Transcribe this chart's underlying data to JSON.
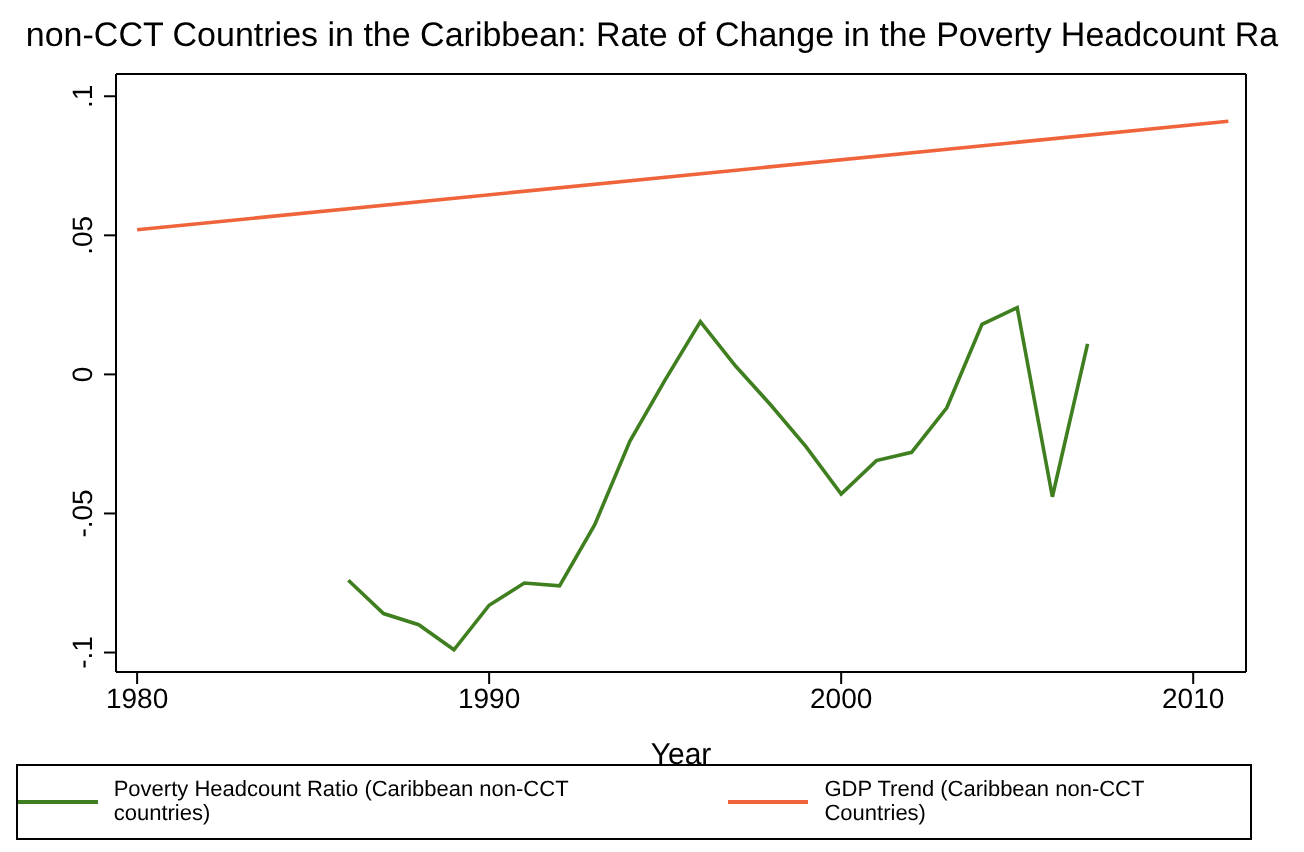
{
  "chart_data": {
    "type": "line",
    "title": "non-CCT Countries in the Caribbean: Rate of Change in the Poverty Headcount Ra",
    "xlabel": "Year",
    "xlim": [
      1979.4,
      2011.5
    ],
    "xticks": [
      1980,
      1990,
      2000,
      2010
    ],
    "ylim": [
      -0.107,
      0.108
    ],
    "yticks": [
      {
        "value": -0.1,
        "label": "-.1"
      },
      {
        "value": -0.05,
        "label": "-.05"
      },
      {
        "value": 0,
        "label": "0"
      },
      {
        "value": 0.05,
        "label": ".05"
      },
      {
        "value": 0.1,
        "label": ".1"
      }
    ],
    "legend": "bottom",
    "series": [
      {
        "name": "Poverty Headcount Ratio (Caribbean non-CCT countries)",
        "color": "#3f7f1f",
        "x": [
          1986,
          1987,
          1988,
          1989,
          1990,
          1991,
          1992,
          1993,
          1994,
          1995,
          1996,
          1997,
          1998,
          1999,
          2000,
          2001,
          2002,
          2003,
          2004,
          2005,
          2006,
          2007
        ],
        "values": [
          -0.074,
          -0.086,
          -0.09,
          -0.099,
          -0.083,
          -0.075,
          -0.076,
          -0.054,
          -0.024,
          -0.002,
          0.019,
          0.003,
          -0.011,
          -0.026,
          -0.043,
          -0.031,
          -0.028,
          -0.012,
          0.018,
          0.024,
          -0.044,
          0.011
        ]
      },
      {
        "name": "GDP Trend (Caribbean non-CCT Countries)",
        "color": "#f0643c",
        "x": [
          1980,
          2011
        ],
        "values": [
          0.052,
          0.091
        ]
      }
    ]
  }
}
